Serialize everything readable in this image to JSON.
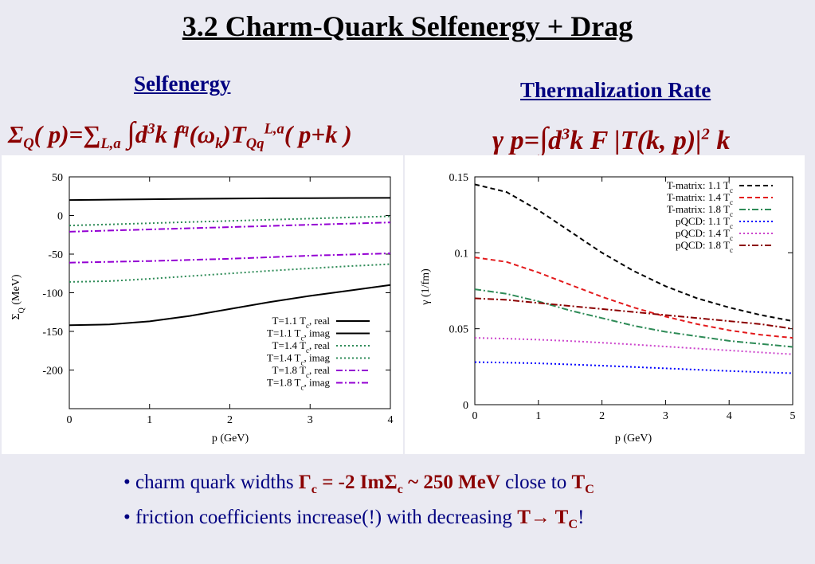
{
  "title": "3.2 Charm-Quark Selfenergy + Drag",
  "left_heading": "Selfenergy",
  "right_heading": "Thermalization Rate",
  "left_formula": {
    "Sigma": "Σ",
    "sub_Q": "Q",
    "lhs_mid": "( p)=",
    "sum": "∑",
    "sub_La": "L,a",
    "integral": "∫",
    "d": "d",
    "sup_3": "3",
    "k_f": "k f",
    "sup_q": "q",
    "omega_open": "(ω",
    "sub_k": "k",
    "T_close": ")T",
    "sub_Qq": "Qq",
    "sup_La": "L,a",
    "tail": "( p+k )"
  },
  "right_formula": {
    "lhs": "γ p=",
    "integral": "∫",
    "d": "d",
    "sup_3": "3",
    "mid": "k F |T(k, p)|",
    "sup_2": "2",
    "tail": " k"
  },
  "charts": {
    "left": {
      "xlabel": "p (GeV)",
      "ylabel_sigma": "Σ",
      "ylabel_sub": "Q",
      "ylabel_unit": " (MeV)",
      "xticks": [
        "0",
        "1",
        "2",
        "3",
        "4"
      ],
      "yticks": [
        "50",
        "0",
        "-50",
        "-100",
        "-150",
        "-200"
      ]
    },
    "right": {
      "xlabel": "p (GeV)",
      "ylabel": "γ (1/fm)",
      "xticks": [
        "0",
        "1",
        "2",
        "3",
        "4",
        "5"
      ],
      "yticks": [
        "0.15",
        "0.1",
        "0.05",
        "0"
      ]
    }
  },
  "chart_data": [
    {
      "type": "line",
      "xlabel": "p (GeV)",
      "ylabel": "ΣQ (MeV)",
      "xlim": [
        0,
        4
      ],
      "ylim": [
        -250,
        50
      ],
      "grid": false,
      "legend_position": "bottom-right",
      "x": [
        0,
        0.5,
        1,
        1.5,
        2,
        2.5,
        3,
        3.5,
        4
      ],
      "series": [
        {
          "name": "T=1.1 Tc, real",
          "color": "#000000",
          "dash": "solid",
          "values": [
            20,
            20.5,
            21,
            21.5,
            22,
            22.3,
            22.5,
            22.7,
            22.8
          ]
        },
        {
          "name": "T=1.1 Tc, imag",
          "color": "#000000",
          "dash": "solid",
          "values": [
            -142,
            -141,
            -137,
            -130,
            -121,
            -112,
            -104,
            -97,
            -90
          ]
        },
        {
          "name": "T=1.4 Tc, real",
          "color": "#2e8b57",
          "dash": "dot",
          "values": [
            -13,
            -11.5,
            -10,
            -8.5,
            -7,
            -5.5,
            -4,
            -2.5,
            -1
          ]
        },
        {
          "name": "T=1.4 Tc, imag",
          "color": "#2e8b57",
          "dash": "dot",
          "values": [
            -86,
            -85,
            -82,
            -78.5,
            -75,
            -71.5,
            -68.5,
            -65.5,
            -63
          ]
        },
        {
          "name": "T=1.8 Tc, real",
          "color": "#9400d3",
          "dash": "dashdot",
          "values": [
            -21,
            -19.5,
            -18,
            -16.5,
            -15,
            -13.5,
            -12,
            -10.5,
            -9
          ]
        },
        {
          "name": "T=1.8 Tc, imag",
          "color": "#9400d3",
          "dash": "dashdot",
          "values": [
            -61,
            -60,
            -59,
            -57.5,
            -56,
            -54,
            -52,
            -50.5,
            -49
          ]
        }
      ]
    },
    {
      "type": "line",
      "xlabel": "p (GeV)",
      "ylabel": "γ (1/fm)",
      "xlim": [
        0,
        5
      ],
      "ylim": [
        0,
        0.15
      ],
      "grid": false,
      "legend_position": "top-right",
      "x": [
        0,
        0.5,
        1,
        1.5,
        2,
        2.5,
        3,
        3.5,
        4,
        4.5,
        5
      ],
      "series": [
        {
          "name": "T-matrix: 1.1 Tc",
          "color": "#000000",
          "dash": "dash",
          "values": [
            0.145,
            0.14,
            0.128,
            0.114,
            0.1,
            0.088,
            0.078,
            0.07,
            0.064,
            0.059,
            0.055
          ]
        },
        {
          "name": "T-matrix: 1.4 Tc",
          "color": "#e31a1c",
          "dash": "dash",
          "values": [
            0.097,
            0.094,
            0.087,
            0.079,
            0.071,
            0.064,
            0.058,
            0.053,
            0.049,
            0.046,
            0.044
          ]
        },
        {
          "name": "T-matrix: 1.8 Tc",
          "color": "#2e8b57",
          "dash": "dashdot",
          "values": [
            0.076,
            0.073,
            0.068,
            0.062,
            0.057,
            0.052,
            0.048,
            0.045,
            0.042,
            0.04,
            0.038
          ]
        },
        {
          "name": "pQCD: 1.1 Tc",
          "color": "#0000ff",
          "dash": "dot",
          "values": [
            0.028,
            0.0277,
            0.0272,
            0.0265,
            0.0257,
            0.0248,
            0.0239,
            0.023,
            0.0222,
            0.0214,
            0.0207
          ]
        },
        {
          "name": "pQCD: 1.4 Tc",
          "color": "#cc44cc",
          "dash": "dot",
          "values": [
            0.044,
            0.0435,
            0.0428,
            0.0419,
            0.0408,
            0.0396,
            0.0383,
            0.037,
            0.0357,
            0.0344,
            0.0332
          ]
        },
        {
          "name": "pQCD: 1.8 Tc",
          "color": "#8b0000",
          "dash": "dashdot",
          "values": [
            0.07,
            0.069,
            0.067,
            0.065,
            0.063,
            0.061,
            0.059,
            0.057,
            0.055,
            0.053,
            0.05
          ]
        }
      ]
    }
  ],
  "bullets": {
    "b1_prefix": "• charm quark widths ",
    "b1_gamma": "Γ",
    "b1_c1": "c",
    "b1_eq": " = -2 ImΣ",
    "b1_c2": "c",
    "b1_val": " ~ 250 MeV",
    "b1_mid": " close to ",
    "b1_T": "T",
    "b1_C": "C",
    "b2_prefix": "• friction coefficients increase(!) with decreasing ",
    "b2_T": "T→ T",
    "b2_C": "C",
    "b2_suffix": "!"
  }
}
